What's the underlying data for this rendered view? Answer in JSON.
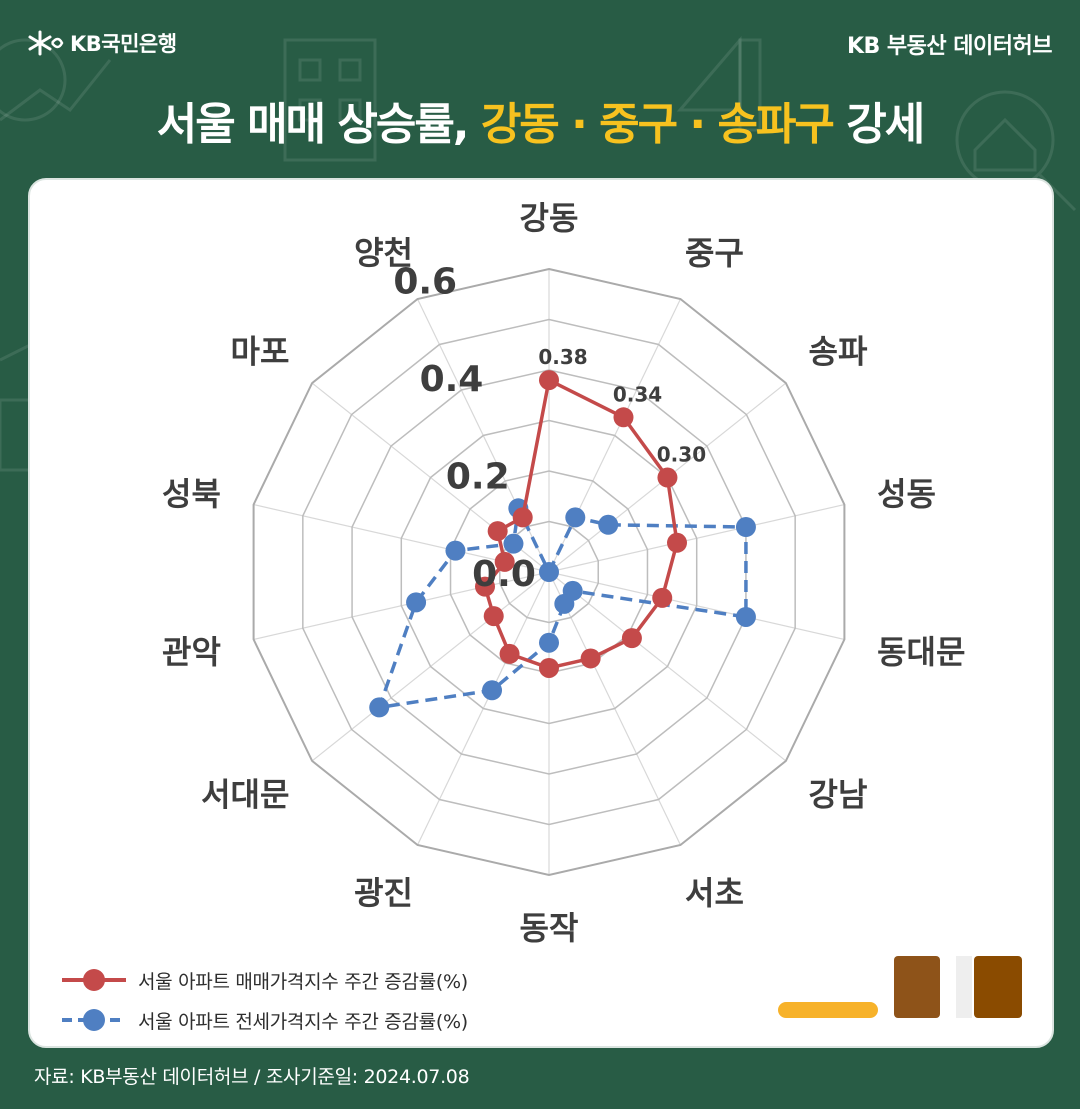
{
  "header": {
    "brand": "KB국민은행",
    "hub": "KB 부동산  데이터허브"
  },
  "title": {
    "part1": "서울 매매 상승률, ",
    "highlight": "강동 · 중구 · 송파구",
    "part2": " 강세"
  },
  "chart_data": {
    "type": "radar",
    "categories": [
      "강동",
      "중구",
      "송파",
      "성동",
      "동대문",
      "강남",
      "서초",
      "동작",
      "광진",
      "서대문",
      "관악",
      "성북",
      "마포",
      "양천"
    ],
    "rlim": [
      0,
      0.6
    ],
    "ticks": [
      "0.0",
      "0.2",
      "0.4",
      "0.6"
    ],
    "tick_values": [
      0,
      0.2,
      0.4,
      0.6
    ],
    "grid": true,
    "legend_position": "bottom-left",
    "series": [
      {
        "name": "서울 아파트 매매가격지수 주간 증감률(%)",
        "color": "#c44a4a",
        "dashed": false,
        "values": [
          0.38,
          0.34,
          0.3,
          0.26,
          0.23,
          0.21,
          0.19,
          0.19,
          0.18,
          0.14,
          0.13,
          0.09,
          0.13,
          0.12
        ],
        "labels": [
          "0.38",
          "0.34",
          "0.30",
          "",
          "",
          "",
          "",
          "",
          "",
          "",
          "",
          "",
          "",
          ""
        ]
      },
      {
        "name": "서울 아파트 전세가격지수 주간 증감률(%)",
        "color": "#4f7fc2",
        "dashed": true,
        "values": [
          0.0,
          0.12,
          0.15,
          0.4,
          0.4,
          0.06,
          0.07,
          0.14,
          0.26,
          0.43,
          0.27,
          0.19,
          0.09,
          0.14
        ],
        "labels": [
          "",
          "",
          "",
          "",
          "",
          "",
          "",
          "",
          "",
          "",
          "",
          "",
          "",
          ""
        ]
      }
    ]
  },
  "logo_colors": [
    "#f7b22a",
    "#8e5319",
    "#eeeeee",
    "#8a4b00"
  ],
  "source": "자료: KB부동산 데이터허브 / 조사기준일: 2024.07.08"
}
